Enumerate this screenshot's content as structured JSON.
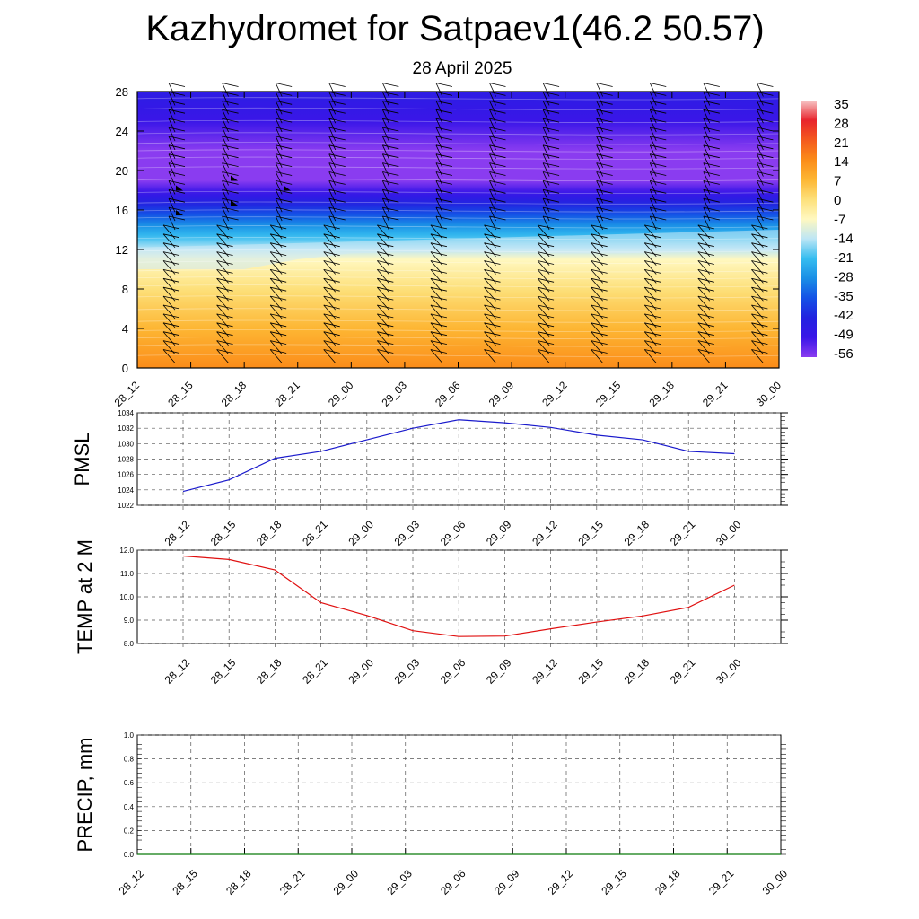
{
  "title": "Kazhydromet for Satpaev1(46.2 50.57)",
  "subtitle": "28 April 2025",
  "chart_data": [
    {
      "type": "heatmap",
      "name": "cross-section",
      "x": [
        "28_12",
        "28_15",
        "28_18",
        "28_21",
        "29_00",
        "29_03",
        "29_06",
        "29_09",
        "29_12",
        "29_15",
        "29_18",
        "29_21",
        "30_00"
      ],
      "y_ticks": [
        0,
        4,
        8,
        12,
        16,
        20,
        24,
        28
      ],
      "ylim": [
        0,
        28
      ],
      "colorbar": {
        "labels": [
          "35",
          "28",
          "21",
          "14",
          "7",
          "0",
          "-7",
          "-14",
          "-21",
          "-28",
          "-35",
          "-42",
          "-49",
          "-56"
        ],
        "colors": [
          "#f7c6c6",
          "#e8242c",
          "#f45a1e",
          "#fb8c19",
          "#fdb633",
          "#fde07a",
          "#fff8c0",
          "#bde6f5",
          "#36bdf0",
          "#1a8fe6",
          "#1452e6",
          "#2222e0",
          "#3a16e8",
          "#8a3cf0"
        ]
      },
      "temperature_profile": [
        {
          "level": 0,
          "value": 14
        },
        {
          "level": 4,
          "value": 7
        },
        {
          "level": 8,
          "value": 0
        },
        {
          "level": 11,
          "value": -7
        },
        {
          "level": 12,
          "value": -14
        },
        {
          "level": 14,
          "value": -25
        },
        {
          "level": 16,
          "value": -38
        },
        {
          "level": 19,
          "value": -56
        },
        {
          "level": 22,
          "value": -56
        },
        {
          "level": 25,
          "value": -49
        },
        {
          "level": 28,
          "value": -45
        }
      ],
      "warm_layer_top": [
        10,
        10,
        10,
        11,
        11.6,
        11.7,
        11.7,
        11.7,
        11.6,
        11.6,
        11.7,
        11.8,
        11.8
      ]
    },
    {
      "type": "line",
      "name": "pmsl",
      "ylabel": "PMSL",
      "x": [
        "28_12",
        "28_15",
        "28_18",
        "28_21",
        "29_00",
        "29_03",
        "29_06",
        "29_09",
        "29_12",
        "29_15",
        "29_18",
        "29_21",
        "30_00"
      ],
      "values": [
        1023.8,
        1025.3,
        1028.1,
        1029.0,
        1030.5,
        1032.0,
        1033.1,
        1032.7,
        1032.1,
        1031.1,
        1030.5,
        1029.0,
        1028.7
      ],
      "ylim": [
        1022,
        1034
      ],
      "y_ticks": [
        "1022",
        "1024",
        "1026",
        "1028",
        "1030",
        "1032",
        "1034"
      ],
      "color": "#1a1acc"
    },
    {
      "type": "line",
      "name": "temp2m",
      "ylabel": "TEMP at 2 M",
      "x": [
        "28_12",
        "28_15",
        "28_18",
        "28_21",
        "29_00",
        "29_03",
        "29_06",
        "29_09",
        "29_12",
        "29_15",
        "29_18",
        "29_21",
        "30_00"
      ],
      "values": [
        11.75,
        11.6,
        11.15,
        9.75,
        9.2,
        8.55,
        8.3,
        8.32,
        8.63,
        8.92,
        9.18,
        9.55,
        10.5
      ],
      "ylim": [
        8,
        12
      ],
      "y_ticks": [
        "8.0",
        "9.0",
        "10.0",
        "11.0",
        "12.0"
      ],
      "color": "#e01010"
    },
    {
      "type": "line",
      "name": "precip",
      "ylabel": "PRECIP, mm",
      "x": [
        "28_12",
        "28_15",
        "28_18",
        "28_21",
        "29_00",
        "29_03",
        "29_06",
        "29_09",
        "29_12",
        "29_15",
        "29_18",
        "29_21",
        "30_00"
      ],
      "values": [
        0,
        0,
        0,
        0,
        0,
        0,
        0,
        0,
        0,
        0,
        0,
        0,
        0
      ],
      "ylim": [
        0,
        1
      ],
      "y_ticks": [
        "0.0",
        "0.2",
        "0.4",
        "0.6",
        "0.8",
        "1.0"
      ],
      "color": "#0a7a0a"
    }
  ]
}
